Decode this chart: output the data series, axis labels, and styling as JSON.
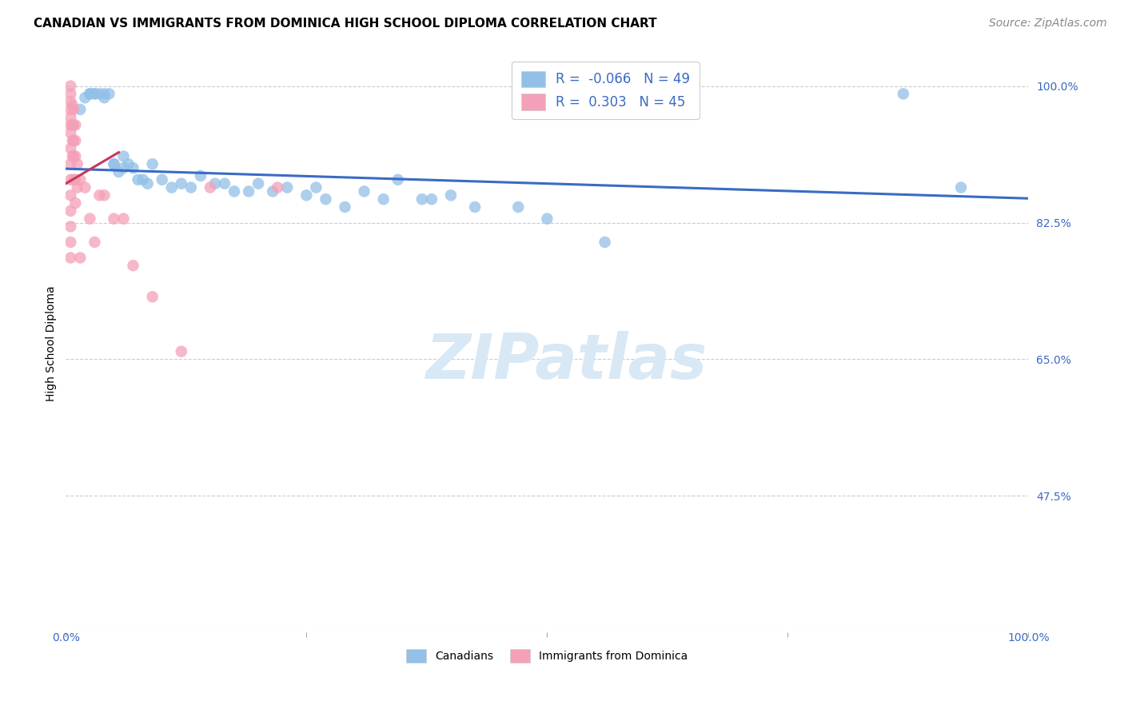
{
  "title": "CANADIAN VS IMMIGRANTS FROM DOMINICA HIGH SCHOOL DIPLOMA CORRELATION CHART",
  "source": "Source: ZipAtlas.com",
  "ylabel": "High School Diploma",
  "ytick_labels": [
    "100.0%",
    "82.5%",
    "65.0%",
    "47.5%"
  ],
  "ytick_values": [
    1.0,
    0.825,
    0.65,
    0.475
  ],
  "xlim": [
    0.0,
    1.0
  ],
  "ylim": [
    0.3,
    1.04
  ],
  "r_canadian": -0.066,
  "n_canadian": 49,
  "r_dominica": 0.303,
  "n_dominica": 45,
  "canadian_color": "#92C0E8",
  "dominica_color": "#F4A0B8",
  "trend_canadian_color": "#3A6BC4",
  "trend_dominica_color": "#C43A5A",
  "watermark_color": "#D8E8F5",
  "canadian_x": [
    0.015,
    0.02,
    0.025,
    0.025,
    0.03,
    0.03,
    0.035,
    0.04,
    0.04,
    0.045,
    0.05,
    0.05,
    0.055,
    0.06,
    0.06,
    0.065,
    0.07,
    0.075,
    0.08,
    0.085,
    0.09,
    0.1,
    0.11,
    0.12,
    0.13,
    0.14,
    0.155,
    0.165,
    0.175,
    0.19,
    0.2,
    0.215,
    0.23,
    0.25,
    0.26,
    0.27,
    0.29,
    0.31,
    0.33,
    0.345,
    0.37,
    0.38,
    0.4,
    0.425,
    0.47,
    0.5,
    0.56,
    0.87,
    0.93
  ],
  "canadian_y": [
    0.97,
    0.985,
    0.99,
    0.99,
    0.99,
    0.99,
    0.99,
    0.99,
    0.985,
    0.99,
    0.9,
    0.9,
    0.89,
    0.91,
    0.895,
    0.9,
    0.895,
    0.88,
    0.88,
    0.875,
    0.9,
    0.88,
    0.87,
    0.875,
    0.87,
    0.885,
    0.875,
    0.875,
    0.865,
    0.865,
    0.875,
    0.865,
    0.87,
    0.86,
    0.87,
    0.855,
    0.845,
    0.865,
    0.855,
    0.88,
    0.855,
    0.855,
    0.86,
    0.845,
    0.845,
    0.83,
    0.8,
    0.99,
    0.87
  ],
  "dominica_x": [
    0.005,
    0.005,
    0.005,
    0.005,
    0.005,
    0.005,
    0.005,
    0.005,
    0.005,
    0.005,
    0.005,
    0.005,
    0.005,
    0.005,
    0.005,
    0.007,
    0.007,
    0.007,
    0.007,
    0.008,
    0.008,
    0.008,
    0.008,
    0.008,
    0.01,
    0.01,
    0.01,
    0.01,
    0.01,
    0.012,
    0.012,
    0.015,
    0.015,
    0.02,
    0.025,
    0.03,
    0.035,
    0.04,
    0.05,
    0.06,
    0.07,
    0.09,
    0.12,
    0.15,
    0.22
  ],
  "dominica_y": [
    1.0,
    0.99,
    0.98,
    0.97,
    0.96,
    0.95,
    0.94,
    0.92,
    0.9,
    0.88,
    0.86,
    0.84,
    0.82,
    0.8,
    0.78,
    0.975,
    0.95,
    0.93,
    0.91,
    0.97,
    0.95,
    0.93,
    0.91,
    0.88,
    0.95,
    0.93,
    0.91,
    0.88,
    0.85,
    0.9,
    0.87,
    0.88,
    0.78,
    0.87,
    0.83,
    0.8,
    0.86,
    0.86,
    0.83,
    0.83,
    0.77,
    0.73,
    0.66,
    0.87,
    0.87
  ],
  "trend_canadian_x0": 0.0,
  "trend_canadian_x1": 1.0,
  "trend_canadian_y0": 0.894,
  "trend_canadian_y1": 0.856,
  "trend_dominica_x0": 0.0,
  "trend_dominica_x1": 0.055,
  "trend_dominica_y0": 0.875,
  "trend_dominica_y1": 0.915,
  "title_fontsize": 11,
  "label_fontsize": 10,
  "tick_fontsize": 10,
  "legend_fontsize": 12,
  "source_fontsize": 10
}
